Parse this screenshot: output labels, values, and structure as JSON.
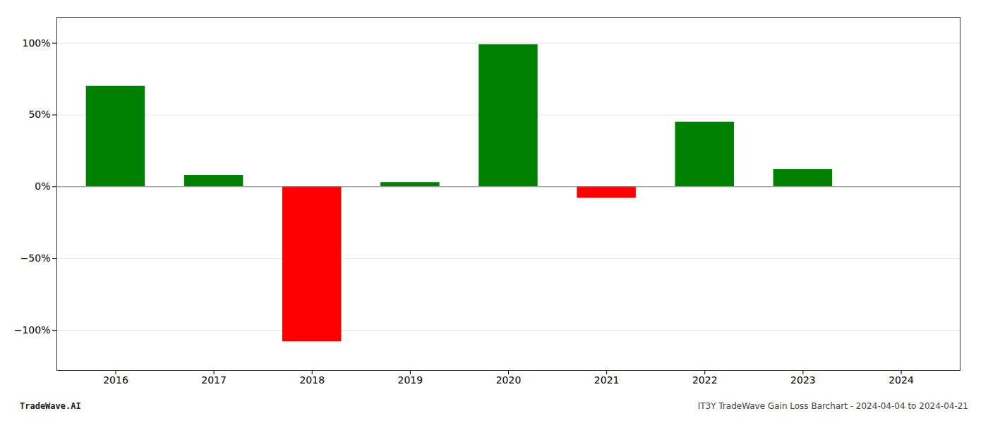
{
  "chart_data": {
    "type": "bar",
    "x": [
      2016,
      2017,
      2018,
      2019,
      2020,
      2021,
      2022,
      2023,
      2024
    ],
    "values": [
      0.7,
      0.08,
      -1.08,
      0.03,
      0.99,
      -0.08,
      0.45,
      0.12,
      0.0
    ],
    "colors": [
      "#008000",
      "#008000",
      "#ff0000",
      "#008000",
      "#008000",
      "#ff0000",
      "#008000",
      "#008000",
      "#008000"
    ],
    "xlim": [
      2015.4,
      2024.6
    ],
    "xticks": [
      2016,
      2017,
      2018,
      2019,
      2020,
      2021,
      2022,
      2023,
      2024
    ],
    "ylim": [
      -1.28,
      1.18
    ],
    "yticks": [
      {
        "value": -1.0,
        "label": "−100%"
      },
      {
        "value": -0.5,
        "label": "−50%"
      },
      {
        "value": 0.0,
        "label": "0%"
      },
      {
        "value": 0.5,
        "label": "50%"
      },
      {
        "value": 1.0,
        "label": "100%"
      }
    ],
    "grid": true,
    "annotations": [
      "TradeWave.AI",
      "IT3Y TradeWave Gain Loss Barchart - 2024-04-04 to 2024-04-21"
    ]
  }
}
